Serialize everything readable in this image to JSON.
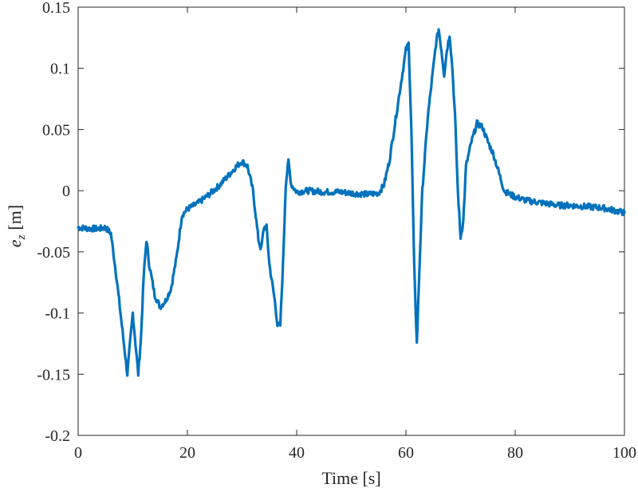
{
  "chart_data": {
    "type": "line",
    "title": "",
    "xlabel": "Time [s]",
    "ylabel_base": "e",
    "ylabel_sub": "z",
    "ylabel_unit": "[m]",
    "xlim": [
      0,
      100
    ],
    "ylim": [
      -0.2,
      0.15
    ],
    "xticks": [
      0,
      20,
      40,
      60,
      80,
      100
    ],
    "yticks": [
      -0.2,
      -0.15,
      -0.1,
      -0.05,
      0,
      0.05,
      0.1,
      0.15
    ],
    "xtick_labels": [
      "0",
      "20",
      "40",
      "60",
      "80",
      "100"
    ],
    "ytick_labels": [
      "-0.2",
      "-0.15",
      "-0.1",
      "-0.05",
      "0",
      "0.05",
      "0.1",
      "0.15"
    ],
    "grid": false,
    "box": true,
    "line_color": "#0072BD",
    "series": [
      {
        "x": [
          0,
          2,
          4,
          5,
          6,
          7,
          8,
          8.5,
          9,
          9.5,
          10,
          10.5,
          11,
          11.5,
          12,
          12.5,
          13,
          14,
          15,
          16,
          17,
          18,
          19,
          20,
          22,
          24,
          26,
          28,
          29,
          30,
          31,
          32,
          33,
          33.5,
          34,
          34.5,
          35,
          36,
          36.5,
          37,
          37.5,
          38,
          38.5,
          39,
          40,
          42,
          45,
          48,
          50,
          53,
          55,
          56,
          57,
          58,
          59,
          60,
          60.5,
          61,
          61.5,
          62,
          62.5,
          63,
          64,
          65,
          65.5,
          66,
          66.5,
          67,
          67.5,
          68,
          68.5,
          69,
          69.5,
          70,
          70.5,
          71,
          72,
          73,
          74,
          75,
          76,
          77,
          78,
          79,
          80,
          82,
          85,
          88,
          90,
          93,
          96,
          98,
          100
        ],
        "y": [
          -0.03,
          -0.031,
          -0.031,
          -0.03,
          -0.035,
          -0.07,
          -0.11,
          -0.13,
          -0.15,
          -0.125,
          -0.1,
          -0.125,
          -0.15,
          -0.12,
          -0.07,
          -0.04,
          -0.06,
          -0.085,
          -0.095,
          -0.09,
          -0.08,
          -0.055,
          -0.02,
          -0.015,
          -0.01,
          -0.003,
          0.005,
          0.015,
          0.02,
          0.024,
          0.02,
          0.0,
          -0.04,
          -0.048,
          -0.03,
          -0.03,
          -0.06,
          -0.09,
          -0.11,
          -0.11,
          -0.06,
          0.005,
          0.024,
          0.005,
          -0.001,
          0.0,
          -0.001,
          -0.001,
          -0.002,
          -0.003,
          -0.002,
          0.005,
          0.025,
          0.055,
          0.085,
          0.115,
          0.12,
          0.05,
          -0.06,
          -0.125,
          -0.06,
          0.0,
          0.06,
          0.1,
          0.12,
          0.132,
          0.115,
          0.095,
          0.115,
          0.128,
          0.1,
          0.06,
          0.0,
          -0.038,
          -0.025,
          0.02,
          0.04,
          0.055,
          0.052,
          0.04,
          0.03,
          0.015,
          0.0,
          -0.003,
          -0.005,
          -0.008,
          -0.01,
          -0.012,
          -0.012,
          -0.013,
          -0.014,
          -0.016,
          -0.018
        ]
      }
    ]
  }
}
